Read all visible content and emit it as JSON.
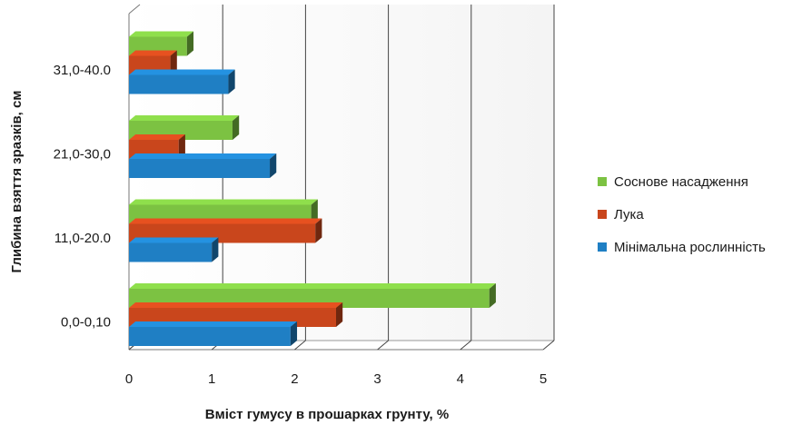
{
  "chart_data": {
    "type": "bar",
    "orientation": "horizontal",
    "style": "3d",
    "categories": [
      "0,0-0,10",
      "11,0-20.0",
      "21,0-30,0",
      "31,0-40.0"
    ],
    "series": [
      {
        "name": "Мінімальна рослинність",
        "values": [
          1.95,
          1.0,
          1.7,
          1.2
        ],
        "color": "#1f7fc4"
      },
      {
        "name": "Лука",
        "values": [
          2.5,
          2.25,
          0.6,
          0.5
        ],
        "color": "#c9461c"
      },
      {
        "name": "Соснове насадження",
        "values": [
          4.35,
          2.2,
          1.25,
          0.7
        ],
        "color": "#7cc242"
      }
    ],
    "xlabel": "Вміст гумусу в прошарках грунту, %",
    "ylabel": "Глибина взяття зразків, см",
    "xlim": [
      0,
      5
    ],
    "xticks": [
      "0",
      "1",
      "2",
      "3",
      "4",
      "5"
    ],
    "grid": true,
    "legend_position": "right",
    "legend_order": [
      "Соснове насадження",
      "Лука",
      "Мінімальна рослинність"
    ]
  }
}
